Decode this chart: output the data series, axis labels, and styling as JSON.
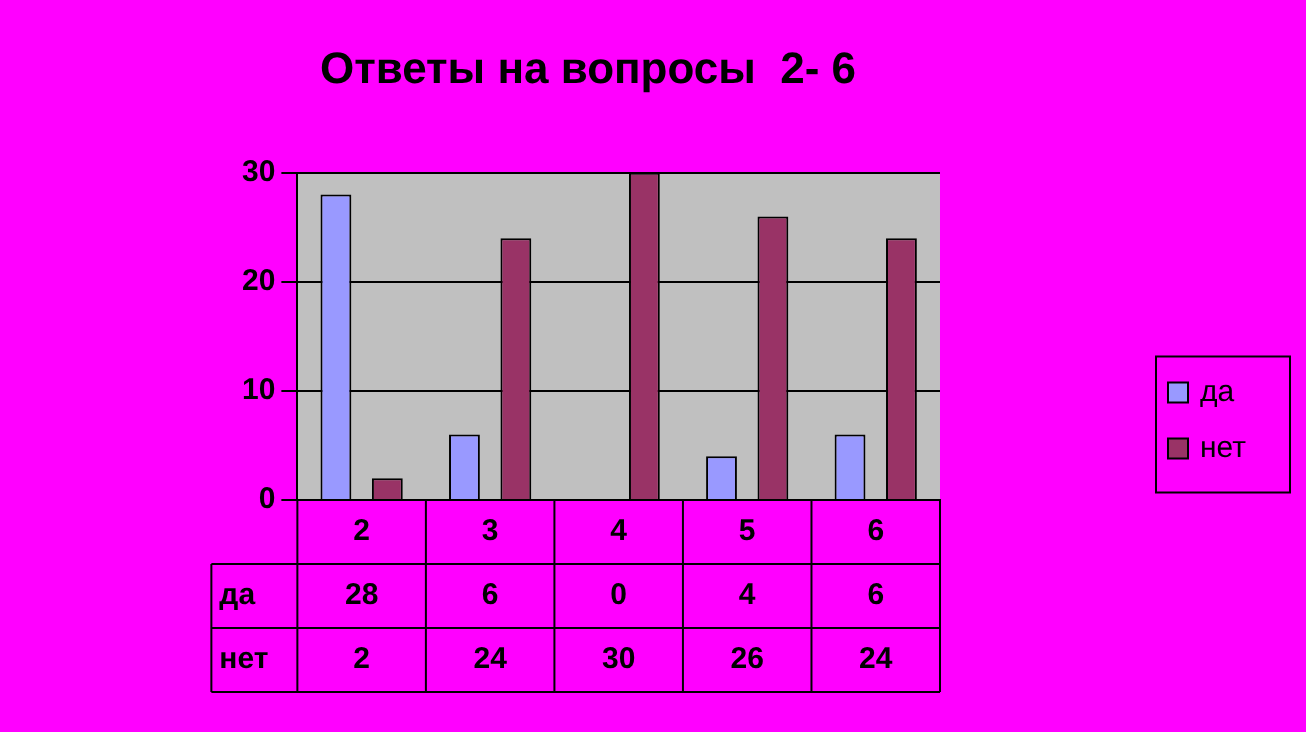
{
  "chart_data": {
    "type": "bar",
    "title": "Ответы на вопросы  2- 6",
    "categories": [
      "2",
      "3",
      "4",
      "5",
      "6"
    ],
    "series": [
      {
        "name": "да",
        "color": "#9999ff",
        "values": [
          28,
          6,
          0,
          4,
          6
        ]
      },
      {
        "name": "нет",
        "color": "#993366",
        "values": [
          2,
          24,
          30,
          26,
          24
        ]
      }
    ],
    "ylim": [
      0,
      30
    ],
    "yticks": [
      0,
      10,
      20,
      30
    ],
    "grid": "y",
    "legend": "right",
    "data_labels": true
  }
}
